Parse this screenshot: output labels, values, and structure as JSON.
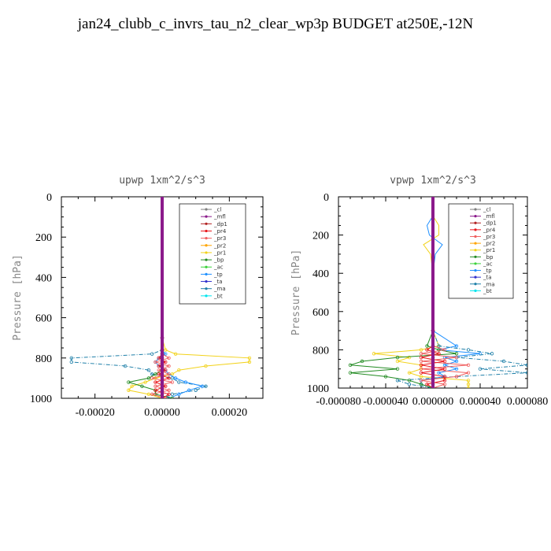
{
  "title": "jan24_clubb_c_invrs_tau_n2_clear_wp3p  BUDGET at250E,-12N",
  "legend_entries": [
    {
      "label": "_cl",
      "color": "#7f7f7f"
    },
    {
      "label": "_mfl",
      "color": "#8b1a8b"
    },
    {
      "label": "_dp1",
      "color": "#b22222"
    },
    {
      "label": "_pr4",
      "color": "#e8191e"
    },
    {
      "label": "_pr3",
      "color": "#f06060"
    },
    {
      "label": "_pr2",
      "color": "#ffa500"
    },
    {
      "label": "_pr1",
      "color": "#f2d21a"
    },
    {
      "label": "_bp",
      "color": "#228b22"
    },
    {
      "label": "_ac",
      "color": "#3cd23c"
    },
    {
      "label": "_tp",
      "color": "#1e90ff"
    },
    {
      "label": "_ta",
      "color": "#3232cd"
    },
    {
      "label": "_ma",
      "color": "#1e7fa8"
    },
    {
      "label": "_bt",
      "color": "#00e5ee"
    }
  ],
  "chart_data": [
    {
      "type": "line",
      "title": "upwp   1xm^2/s^3",
      "ylabel": "Pressure [hPa]",
      "xlim": [
        -0.0003,
        0.0003
      ],
      "ylim": [
        1000,
        0
      ],
      "xticks": [
        -0.0002,
        0.0,
        0.0002
      ],
      "xtick_labels": [
        "-0.00020",
        "0.00000",
        "0.00020"
      ],
      "yticks": [
        0,
        200,
        400,
        600,
        800,
        1000
      ],
      "ytick_labels": [
        "0",
        "200",
        "400",
        "600",
        "800",
        "1000"
      ],
      "legend_position": "top-right",
      "y": [
        0,
        100,
        200,
        300,
        400,
        500,
        600,
        700,
        760,
        780,
        800,
        820,
        840,
        860,
        880,
        900,
        920,
        940,
        960,
        980,
        1000
      ],
      "series": [
        {
          "name": "_ma",
          "values": [
            0,
            0,
            0,
            0,
            0,
            0,
            0,
            0,
            0,
            -3e-05,
            -0.00027,
            -0.00027,
            -0.00011,
            -4e-05,
            -3e-05,
            3e-05,
            5e-05,
            0.00013,
            0.0001,
            3e-05,
            0.0
          ]
        },
        {
          "name": "_pr1",
          "values": [
            0,
            0,
            0,
            0,
            0,
            0,
            0,
            0,
            1e-05,
            4e-05,
            0.00026,
            0.00026,
            0.00013,
            5e-05,
            3e-05,
            -2e-05,
            -5e-05,
            -9e-05,
            -0.0001,
            -4e-05,
            0.0
          ]
        },
        {
          "name": "_tp",
          "values": [
            0,
            0,
            0,
            0,
            0,
            0,
            0,
            0,
            0,
            1e-05,
            -1e-05,
            -2e-05,
            -1e-05,
            1e-05,
            2e-05,
            4e-05,
            7e-05,
            0.00012,
            8e-05,
            5e-05,
            2e-05
          ]
        },
        {
          "name": "_bp",
          "values": [
            0,
            0,
            0,
            0,
            0,
            0,
            0,
            0,
            0,
            0,
            0,
            0,
            0,
            0,
            -2e-05,
            -4e-05,
            -0.0001,
            -6e-05,
            -2e-05,
            -2e-05,
            3e-05
          ]
        },
        {
          "name": "_pr3",
          "values": [
            0,
            0,
            0,
            0,
            0,
            0,
            0,
            0,
            0,
            0,
            2e-05,
            -2e-05,
            2e-05,
            -1e-05,
            2e-05,
            -3e-05,
            3e-05,
            -2e-05,
            2e-05,
            -3e-05,
            1e-05
          ]
        },
        {
          "name": "_pr4",
          "values": [
            0,
            0,
            0,
            0,
            0,
            0,
            0,
            0,
            0,
            0,
            -1e-05,
            1e-05,
            -1e-05,
            1e-05,
            -1e-05,
            2e-05,
            -2e-05,
            1e-05,
            -2e-05,
            2e-05,
            0
          ]
        },
        {
          "name": "_dp1",
          "values": [
            0,
            0,
            0,
            0,
            0,
            0,
            0,
            0,
            0,
            0,
            0,
            0,
            0,
            0,
            0,
            0,
            0,
            0,
            0,
            0,
            0
          ]
        },
        {
          "name": "_mfl",
          "values": [
            0,
            0,
            0,
            0,
            0,
            0,
            0,
            0,
            0,
            0,
            0,
            0,
            0,
            0,
            0,
            0,
            0,
            0,
            0,
            0,
            0
          ]
        }
      ]
    },
    {
      "type": "line",
      "title": "vpwp   1xm^2/s^3",
      "ylabel": "Pressure [hPa]",
      "xlim": [
        -8e-05,
        8e-05
      ],
      "ylim": [
        1000,
        0
      ],
      "xticks": [
        -8e-05,
        -4e-05,
        0.0,
        4e-05,
        8e-05
      ],
      "xtick_labels": [
        "-0.000080",
        "-0.000040",
        "0.000000",
        "0.000040",
        "0.000080"
      ],
      "yticks": [
        0,
        200,
        400,
        600,
        800,
        1000
      ],
      "ytick_labels": [
        "0",
        "200",
        "400",
        "600",
        "800",
        "1000"
      ],
      "legend_position": "top-right",
      "y": [
        0,
        100,
        150,
        200,
        250,
        300,
        400,
        500,
        600,
        700,
        780,
        800,
        820,
        840,
        860,
        880,
        900,
        920,
        940,
        960,
        980,
        1000
      ],
      "series": [
        {
          "name": "_pr1",
          "values": [
            0,
            0,
            5e-06,
            5e-06,
            -8e-06,
            -2e-06,
            0,
            0,
            0,
            0,
            5e-06,
            -1e-05,
            -5e-05,
            -2e-05,
            -3e-05,
            -1e-05,
            -1e-05,
            -2e-05,
            -1e-05,
            3e-05,
            3e-05,
            3e-05
          ]
        },
        {
          "name": "_tp",
          "values": [
            0,
            0,
            -5e-06,
            -3e-06,
            8e-06,
            2e-06,
            0,
            0,
            0,
            0,
            2e-05,
            5e-06,
            4e-05,
            1e-05,
            2e-05,
            1e-05,
            2e-05,
            5e-06,
            1e-05,
            -1e-05,
            -1e-05,
            0
          ]
        },
        {
          "name": "_ma",
          "values": [
            0,
            0,
            0,
            0,
            0,
            0,
            0,
            0,
            0,
            0,
            5e-06,
            3e-05,
            5e-05,
            2e-05,
            6e-05,
            8e-05,
            4e-05,
            8e-05,
            2e-05,
            -3e-05,
            -2e-05,
            0
          ]
        },
        {
          "name": "_bp",
          "values": [
            0,
            0,
            0,
            0,
            0,
            0,
            0,
            0,
            0,
            0,
            -5e-06,
            5e-06,
            2e-05,
            -3e-05,
            -6e-05,
            -7e-05,
            -3e-05,
            -7e-05,
            -4e-05,
            -2e-05,
            -1e-05,
            0
          ]
        },
        {
          "name": "_pr3",
          "values": [
            0,
            0,
            0,
            0,
            0,
            0,
            0,
            0,
            0,
            0,
            0,
            1e-05,
            -1e-05,
            2e-05,
            -1e-05,
            3e-05,
            -1e-05,
            3e-05,
            2e-05,
            -1e-05,
            1e-05,
            0
          ]
        },
        {
          "name": "_pr4",
          "values": [
            0,
            0,
            0,
            0,
            0,
            0,
            0,
            0,
            0,
            0,
            0,
            -5e-06,
            5e-06,
            -1e-05,
            1e-05,
            -1e-05,
            1e-05,
            -1e-05,
            1e-05,
            1e-05,
            -5e-06,
            0
          ]
        },
        {
          "name": "_dp1",
          "values": [
            0,
            0,
            0,
            0,
            0,
            0,
            0,
            0,
            0,
            0,
            0,
            0,
            0,
            0,
            0,
            0,
            0,
            0,
            0,
            0,
            0,
            0
          ]
        },
        {
          "name": "_mfl",
          "values": [
            0,
            0,
            0,
            0,
            0,
            0,
            0,
            0,
            0,
            0,
            0,
            0,
            0,
            0,
            0,
            0,
            0,
            0,
            0,
            0,
            0,
            0
          ]
        }
      ]
    }
  ]
}
